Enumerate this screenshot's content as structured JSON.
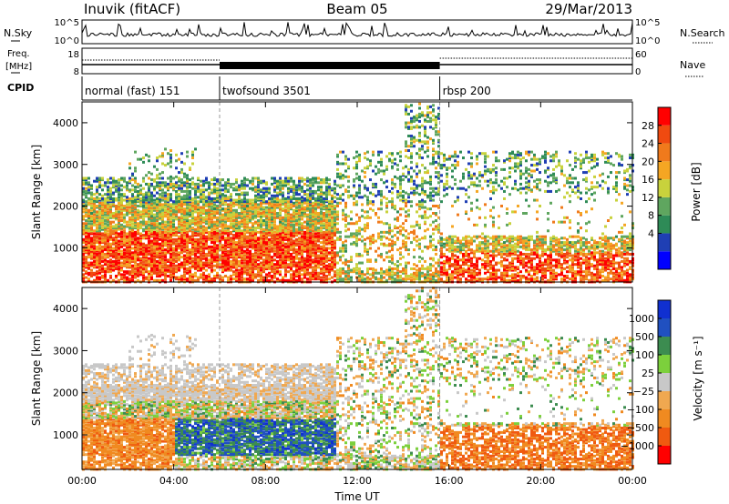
{
  "header": {
    "station": "Inuvik (fitACF)",
    "beam": "Beam 05",
    "date": "29/Mar/2013"
  },
  "summary_panel": {
    "left_labels": [
      "N.Sky",
      "Freq.",
      "[MHz]",
      "CPID"
    ],
    "right_labels": [
      "N.Search",
      "Nave"
    ],
    "nsky_ticks": [
      "10^5",
      "10^0"
    ],
    "nsearch_ticks": [
      "10^5",
      "10^0"
    ],
    "freq_ticks": [
      "18",
      "8"
    ],
    "nave_ticks": [
      "60",
      "0"
    ]
  },
  "cpid_segments": [
    {
      "label": "normal (fast) 151",
      "start_hour": 0,
      "end_hour": 6
    },
    {
      "label": "twofsound 3501",
      "start_hour": 6,
      "end_hour": 15.6
    },
    {
      "label": "rbsp 200",
      "start_hour": 15.6,
      "end_hour": 24
    }
  ],
  "chart_data": [
    {
      "type": "heatmap",
      "name": "power",
      "xlabel": "Time UT",
      "ylabel": "Slant Range [km]",
      "xlim": [
        0,
        24
      ],
      "ylim": [
        180,
        4500
      ],
      "xticks": [
        "00:00",
        "04:00",
        "08:00",
        "12:00",
        "16:00",
        "20:00",
        "00:00"
      ],
      "yticks": [
        1000,
        2000,
        3000,
        4000
      ],
      "colorbar": {
        "label": "Power [dB]",
        "ticks": [
          "28",
          "24",
          "20",
          "16",
          "12",
          "8",
          "4"
        ],
        "colors": [
          "#0000ff",
          "#1f3fb4",
          "#2e8b57",
          "#5fa65f",
          "#c8d23c",
          "#f5a623",
          "#f07a1c",
          "#f04a10",
          "#ff0000"
        ]
      }
    },
    {
      "type": "heatmap",
      "name": "velocity",
      "xlabel": "Time UT",
      "ylabel": "Slant Range [km]",
      "xlim": [
        0,
        24
      ],
      "ylim": [
        180,
        4500
      ],
      "xticks": [
        "00:00",
        "04:00",
        "08:00",
        "12:00",
        "16:00",
        "20:00",
        "00:00"
      ],
      "yticks": [
        1000,
        2000,
        3000,
        4000
      ],
      "colorbar": {
        "label": "Velocity [m s⁻¹]",
        "ticks": [
          "1000",
          "500",
          "100",
          "25",
          "−25",
          "−100",
          "−500",
          "−1000"
        ],
        "colors": [
          "#ff0000",
          "#f05a10",
          "#f08a20",
          "#f0a850",
          "#c8c8c8",
          "#7cd03c",
          "#3c8c50",
          "#2050c0",
          "#1030d0"
        ]
      }
    }
  ]
}
